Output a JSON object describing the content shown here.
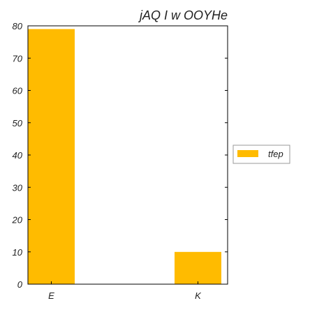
{
  "chart_data": {
    "type": "bar",
    "title": "jAQ I w OOYHe",
    "categories": [
      "E",
      "K"
    ],
    "series": [
      {
        "name": "tfep",
        "values": [
          79,
          10
        ],
        "color": "#ffbb00"
      }
    ],
    "ylim": [
      0,
      80
    ],
    "yticks": [
      0,
      10,
      20,
      30,
      40,
      50,
      60,
      70,
      80
    ],
    "grid": false,
    "legend_position": "right"
  }
}
